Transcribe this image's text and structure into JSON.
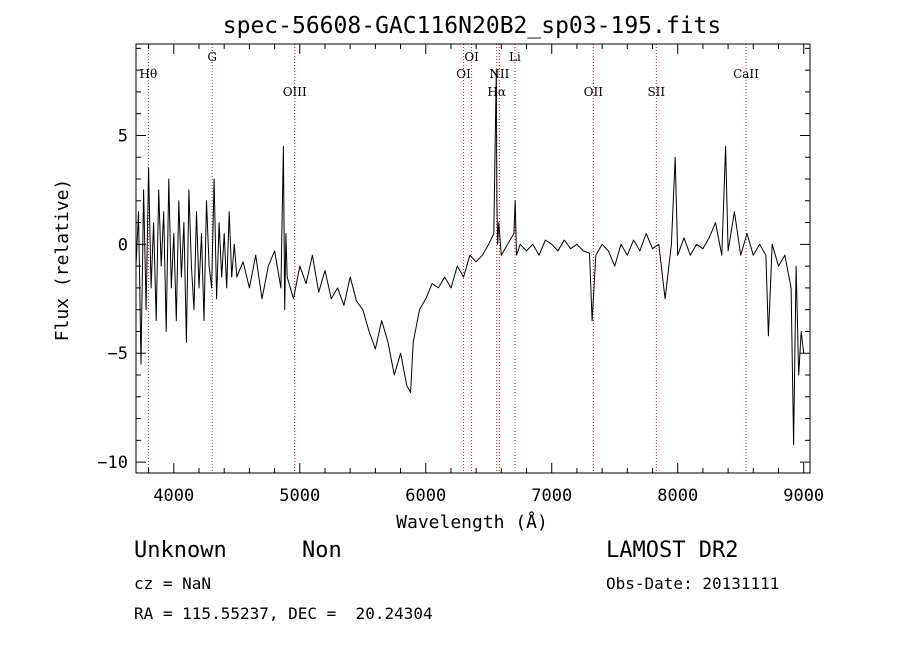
{
  "chart_data": {
    "type": "line",
    "title": "spec-56608-GAC116N20B2_sp03-195.fits",
    "xlabel": "Wavelength (Å)",
    "ylabel": "Flux (relative)",
    "xlim": [
      3700,
      9050
    ],
    "ylim": [
      -10.5,
      9.2
    ],
    "x_ticks": [
      4000,
      5000,
      6000,
      7000,
      8000,
      9000
    ],
    "y_ticks": [
      5,
      0,
      -5,
      -10
    ],
    "grid": false,
    "line_color": "#000000",
    "marker_color": "#b22222",
    "spectral_lines": [
      {
        "label": "Hθ",
        "wavelength": 3798,
        "row": 3
      },
      {
        "label": "G",
        "wavelength": 4305,
        "row": 1
      },
      {
        "label": "OIII",
        "wavelength": 4960,
        "row": 4
      },
      {
        "label": "OI",
        "wavelength": 6300,
        "row": 3
      },
      {
        "label": "OI",
        "wavelength": 6364,
        "row": 1
      },
      {
        "label": "Hα",
        "wavelength": 6563,
        "row": 4
      },
      {
        "label": "NII",
        "wavelength": 6584,
        "row": 3
      },
      {
        "label": "Li",
        "wavelength": 6708,
        "row": 1
      },
      {
        "label": "OII",
        "wavelength": 7330,
        "row": 4
      },
      {
        "label": "SII",
        "wavelength": 7830,
        "row": 4
      },
      {
        "label": "CaII",
        "wavelength": 8542,
        "row": 3
      }
    ],
    "series": [
      {
        "x": [
          3700,
          3720,
          3740,
          3760,
          3780,
          3800,
          3820,
          3840,
          3860,
          3880,
          3900,
          3920,
          3940,
          3960,
          3980,
          4000,
          4020,
          4040,
          4060,
          4080,
          4100,
          4120,
          4140,
          4160,
          4180,
          4200,
          4220,
          4240,
          4260,
          4280,
          4300,
          4320,
          4340,
          4360,
          4380,
          4400,
          4420,
          4440,
          4460,
          4480,
          4500,
          4550,
          4600,
          4650,
          4700,
          4750,
          4800,
          4850,
          4870,
          4880,
          4890,
          4900,
          4950,
          5000,
          5050,
          5100,
          5150,
          5200,
          5250,
          5300,
          5350,
          5400,
          5450,
          5500,
          5550,
          5600,
          5650,
          5700,
          5750,
          5800,
          5850,
          5880,
          5900,
          5950,
          6000,
          6050,
          6100,
          6150,
          6200,
          6250,
          6300,
          6350,
          6400,
          6450,
          6500,
          6540,
          6560,
          6565,
          6570,
          6580,
          6600,
          6650,
          6700,
          6710,
          6720,
          6750,
          6800,
          6850,
          6900,
          6950,
          7000,
          7050,
          7100,
          7150,
          7200,
          7250,
          7300,
          7320,
          7350,
          7400,
          7450,
          7500,
          7550,
          7600,
          7650,
          7700,
          7750,
          7800,
          7850,
          7900,
          7950,
          7980,
          8000,
          8050,
          8100,
          8150,
          8200,
          8250,
          8300,
          8350,
          8380,
          8400,
          8450,
          8500,
          8550,
          8600,
          8650,
          8700,
          8720,
          8750,
          8800,
          8850,
          8900,
          8920,
          8940,
          8960,
          8980,
          9000
        ],
        "y": [
          -1.0,
          1.5,
          -5.5,
          2.5,
          -3.0,
          3.5,
          -2.0,
          1.0,
          -3.5,
          2.5,
          -1.0,
          1.5,
          -4.0,
          3.0,
          -2.0,
          0.5,
          -3.5,
          2.0,
          -1.5,
          1.0,
          -4.5,
          2.5,
          -1.0,
          -3.0,
          1.5,
          -2.0,
          0.5,
          -3.5,
          2.0,
          -1.0,
          -2.0,
          3.0,
          -2.5,
          1.0,
          -1.5,
          0.5,
          -2.0,
          1.5,
          -1.5,
          0.0,
          -1.5,
          -0.8,
          -2.0,
          -0.5,
          -2.5,
          -1.0,
          -0.3,
          -2.0,
          4.5,
          -3.0,
          0.5,
          -1.5,
          -2.5,
          -1.0,
          -1.8,
          -0.5,
          -2.2,
          -1.2,
          -2.5,
          -2.0,
          -2.8,
          -1.5,
          -2.6,
          -3.0,
          -4.0,
          -4.8,
          -3.5,
          -4.5,
          -6.0,
          -5.0,
          -6.5,
          -6.8,
          -4.5,
          -3.0,
          -2.5,
          -1.8,
          -2.0,
          -1.5,
          -2.0,
          -1.0,
          -1.5,
          -0.5,
          -0.8,
          -0.5,
          0.0,
          0.5,
          8.0,
          2.0,
          0.0,
          1.0,
          -0.5,
          0.0,
          0.5,
          2.0,
          -0.5,
          0.0,
          -0.3,
          0.0,
          -0.5,
          0.2,
          0.0,
          -0.3,
          0.2,
          -0.2,
          0.0,
          -0.3,
          -0.4,
          -3.5,
          -0.5,
          0.0,
          -0.3,
          -1.0,
          0.0,
          -0.5,
          0.2,
          -0.3,
          0.5,
          -0.2,
          0.0,
          -2.5,
          0.0,
          4.0,
          -0.5,
          0.3,
          -0.5,
          0.0,
          -0.2,
          0.3,
          1.0,
          -0.5,
          4.5,
          -0.3,
          1.5,
          -0.5,
          0.5,
          -0.5,
          0.0,
          -0.5,
          -4.2,
          0.0,
          -1.0,
          -0.5,
          -2.0,
          -9.2,
          -1.0,
          -6.0,
          -4.0,
          -5.0
        ]
      }
    ]
  },
  "footer": {
    "object_class": "Unknown",
    "subclass": "Non",
    "survey": "LAMOST DR2",
    "cz": "cz = NaN",
    "obs_date": "Obs-Date: 20131111",
    "coords": "RA = 115.55237, DEC =  20.24304"
  }
}
